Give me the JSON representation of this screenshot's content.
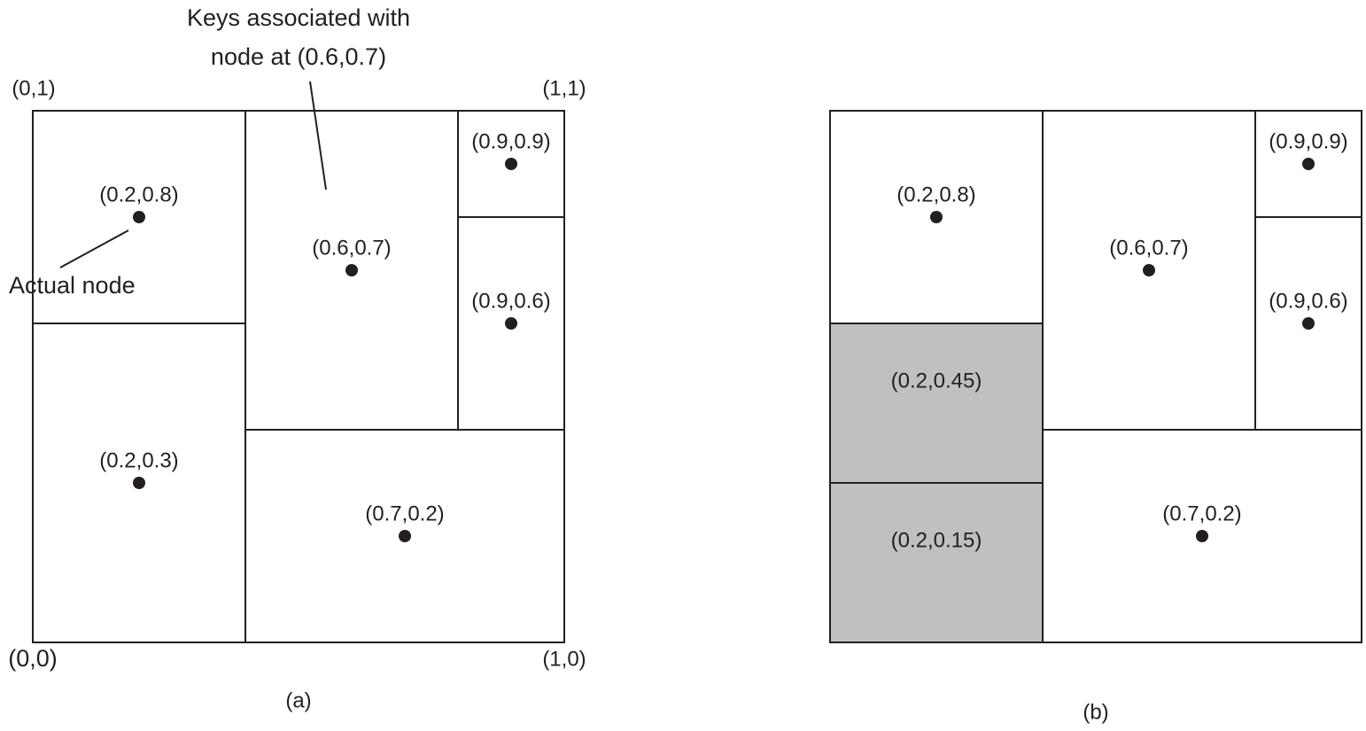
{
  "panel_a": {
    "caption": "(a)",
    "corners": [
      "(0,1)",
      "(1,1)",
      "(0,0)",
      "(1,0)"
    ],
    "nodes": [
      "(0.2,0.8)",
      "(0.6,0.7)",
      "(0.9,0.9)",
      "(0.9,0.6)",
      "(0.2,0.3)",
      "(0.7,0.2)"
    ],
    "annotations": [
      "Keys associated with",
      "node at (0.6,0.7)",
      "Actual node"
    ]
  },
  "panel_b": {
    "caption": "(b)",
    "nodes": [
      "(0.2,0.8)",
      "(0.6,0.7)",
      "(0.9,0.9)",
      "(0.9,0.6)",
      "(0.2,0.45)",
      "(0.2,0.15)",
      "(0.7,0.2)"
    ]
  }
}
